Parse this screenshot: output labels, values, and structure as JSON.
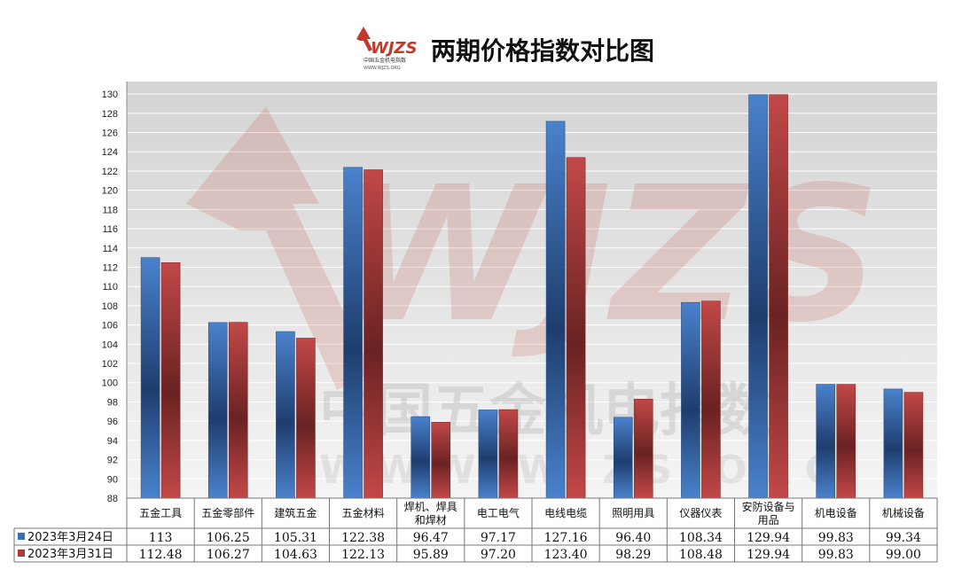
{
  "header": {
    "title": "两期价格指数对比图",
    "logo_text": "WJZS",
    "logo_subtext": "中国五金机电指数",
    "logo_url": "WWW.WJZS.ORG"
  },
  "watermark": {
    "text": "WJZS",
    "cn_text": "中国五金机电指数",
    "url_text": "W W W . W J Z S . O R G"
  },
  "colors": {
    "series1": "#3a6fb8",
    "series1_dark": "#1b3660",
    "series2": "#b03a3a",
    "series2_dark": "#5c1c1c",
    "plot_bg": "#d9d9d9",
    "gridline": "#ffffff",
    "watermark": "#c0392b"
  },
  "chart_data": {
    "type": "bar",
    "title": "两期价格指数对比图",
    "categories": [
      [
        "五金工具"
      ],
      [
        "五金零部件"
      ],
      [
        "建筑五金"
      ],
      [
        "五金材料"
      ],
      [
        "焊机、焊具",
        "和焊材"
      ],
      [
        "电工电气"
      ],
      [
        "电线电缆"
      ],
      [
        "照明用具"
      ],
      [
        "仪器仪表"
      ],
      [
        "安防设备与",
        "用品"
      ],
      [
        "机电设备"
      ],
      [
        "机械设备"
      ]
    ],
    "series": [
      {
        "name": "2023年3月24日",
        "values": [
          113,
          106.25,
          105.31,
          122.38,
          96.47,
          97.17,
          127.16,
          96.4,
          108.34,
          129.94,
          99.83,
          99.34
        ],
        "labels": [
          "113",
          "106.25",
          "105.31",
          "122.38",
          "96.47",
          "97.17",
          "127.16",
          "96.40",
          "108.34",
          "129.94",
          "99.83",
          "99.34"
        ]
      },
      {
        "name": "2023年3月31日",
        "values": [
          112.48,
          106.27,
          104.63,
          122.13,
          95.89,
          97.2,
          123.4,
          98.29,
          108.48,
          129.94,
          99.83,
          99.0
        ],
        "labels": [
          "112.48",
          "106.27",
          "104.63",
          "122.13",
          "95.89",
          "97.20",
          "123.40",
          "98.29",
          "108.48",
          "129.94",
          "99.83",
          "99.00"
        ]
      }
    ],
    "ylim": [
      88,
      130
    ],
    "ytick_step": 2,
    "grid": true,
    "legend": "data-table-bottom"
  }
}
